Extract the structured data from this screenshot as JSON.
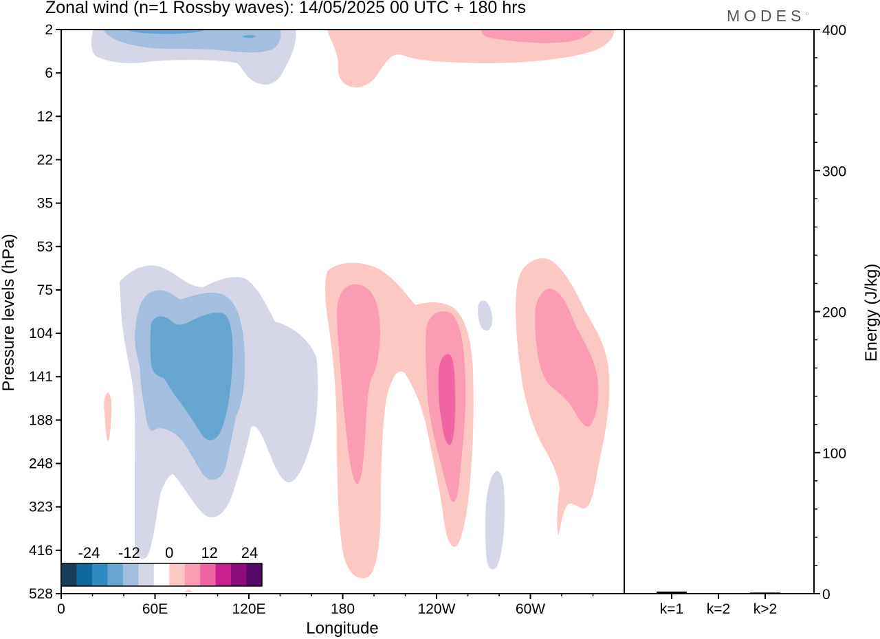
{
  "title": "Zonal wind (n=1 Rossby waves):  14/05/2025  00 UTC  + 180 hrs",
  "brand": "MODES",
  "chart_data": [
    {
      "type": "heatmap",
      "title": "Zonal wind (n=1 Rossby waves):  14/05/2025  00 UTC  + 180 hrs",
      "xlabel": "Longitude",
      "ylabel": "Pressure levels (hPa)",
      "x_ticks": [
        "0",
        "60E",
        "120E",
        "180",
        "120W",
        "60W"
      ],
      "x_tick_degrees": [
        0,
        60,
        120,
        180,
        240,
        300
      ],
      "xlim": [
        0,
        360
      ],
      "y_ticks": [
        "2",
        "6",
        "12",
        "22",
        "35",
        "53",
        "75",
        "104",
        "141",
        "188",
        "248",
        "323",
        "416",
        "528"
      ],
      "y_scale": "model levels (non-uniform, evenly spaced)",
      "colorbar": {
        "labels": [
          "-24",
          "-12",
          "0",
          "12",
          "24"
        ],
        "label_values": [
          -24,
          -12,
          0,
          12,
          24
        ],
        "levels": [
          -30,
          -25,
          -20,
          -15,
          -10,
          -5,
          0,
          5,
          10,
          15,
          20,
          25,
          30
        ],
        "colors": [
          "#173f5a",
          "#0e6a9c",
          "#2e8bc2",
          "#66a6d1",
          "#a3bedf",
          "#d5d6e8",
          "#ffffff",
          "#fcc8c4",
          "#f99cb4",
          "#f265a4",
          "#c81e8e",
          "#8c0a7a",
          "#560868"
        ],
        "placement": "bottom-left"
      }
    },
    {
      "type": "bar",
      "ylabel": "Energy (J/kg)",
      "categories": [
        "k=1",
        "k=2",
        "k>2"
      ],
      "values": [
        1,
        0,
        0.3
      ],
      "ylim": [
        0,
        400
      ],
      "y_ticks": [
        "0",
        "100",
        "200",
        "300",
        "400"
      ],
      "y_tick_values": [
        0,
        100,
        200,
        300,
        400
      ]
    }
  ]
}
